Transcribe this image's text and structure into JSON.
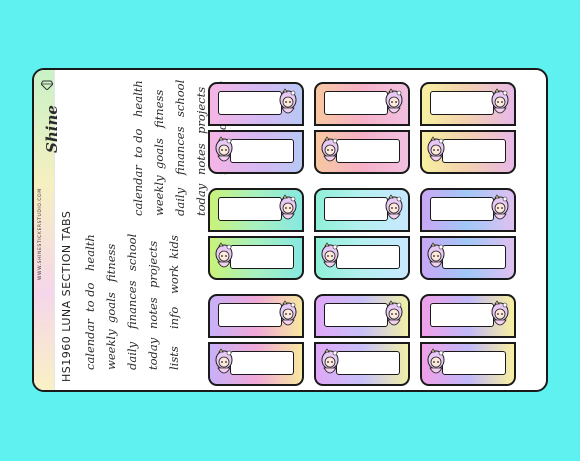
{
  "brand": {
    "name": "Shine",
    "website": "WWW.SHINESTICKERSTUDIO.COM"
  },
  "product": {
    "code": "HS1960",
    "title": "LUNA SECTION TABS"
  },
  "word_columns": [
    [
      "calendar",
      "to do",
      "health"
    ],
    [
      "weekly",
      "goals",
      "fitness"
    ],
    [
      "daily",
      "finances",
      "school"
    ],
    [
      "today",
      "notes",
      "projects"
    ],
    [
      "lists",
      "info",
      "work",
      "kids"
    ]
  ],
  "colors": {
    "background": "#5ff0f0",
    "tab_gradients": [
      [
        "#f5b5e5",
        "#d8b8f2",
        "#b9c8f5"
      ],
      [
        "#f7c8a0",
        "#f6b0c8",
        "#f2c0e0"
      ],
      [
        "#f7f0a0",
        "#f3d0b0",
        "#e8b8e8"
      ],
      [
        "#c9f27a",
        "#a8f0c0",
        "#88e8e0"
      ],
      [
        "#8ff0d8",
        "#b5f0f0",
        "#c8e8ff"
      ],
      [
        "#c9a8f5",
        "#a0c8f8",
        "#e0c0f0"
      ],
      [
        "#c8b0f8",
        "#f0a8d8",
        "#f8e8a0"
      ],
      [
        "#e0a8f8",
        "#c8c0f8",
        "#f0f0a8"
      ],
      [
        "#f0a0e8",
        "#c0b8f8",
        "#f8f0a0"
      ]
    ]
  },
  "icons": {
    "mascot": "luna-character-icon",
    "gem": "gem-icon"
  }
}
